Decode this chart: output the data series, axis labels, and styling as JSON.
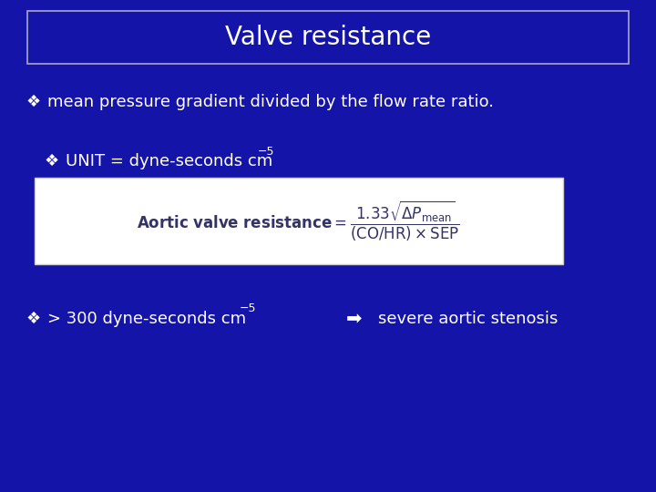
{
  "background_color": "#1414a8",
  "title": "Valve resistance",
  "title_box_edge_color": "#aaaacc",
  "title_text_color": "#ffffff",
  "bullet": "❖",
  "text_color": "#ffffff",
  "line1": "mean pressure gradient divided by the flow rate ratio.",
  "line2_prefix": "UNIT = dyne-seconds cm",
  "line2_superscript": "−5",
  "formula_box_color": "#ffffff",
  "formula_box_edge_color": "#cccccc",
  "line3_prefix": "> 300 dyne-seconds cm",
  "line3_superscript": "−5",
  "line3_suffix": "severe aortic stenosis",
  "arrow_symbol": "➡",
  "font_size_title": 20,
  "font_size_body": 13,
  "font_size_sub": 9,
  "font_size_formula": 12
}
